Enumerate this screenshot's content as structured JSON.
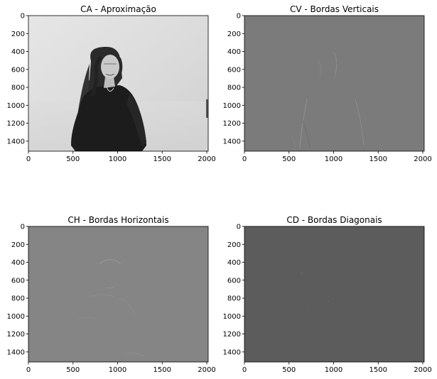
{
  "chart_data": [
    {
      "type": "image",
      "title": "CA - Aproximação",
      "xlim": [
        0,
        2016
      ],
      "ylim": [
        1512,
        0
      ],
      "xticks": [
        0,
        500,
        1000,
        1500,
        2000
      ],
      "yticks": [
        0,
        200,
        400,
        600,
        800,
        1000,
        1200,
        1400
      ],
      "colormap": "gray",
      "content": "grayscale photo of a smiling woman with long curly hair wearing a black top against a light background"
    },
    {
      "type": "image",
      "title": "CV - Bordas Verticais",
      "xlim": [
        0,
        2016
      ],
      "ylim": [
        1512,
        0
      ],
      "xticks": [
        0,
        500,
        1000,
        1500,
        2000
      ],
      "yticks": [
        0,
        200,
        400,
        600,
        800,
        1000,
        1200,
        1400
      ],
      "colormap": "gray",
      "content": "faint vertical edge details on uniform gray"
    },
    {
      "type": "image",
      "title": "CH - Bordas Horizontais",
      "xlim": [
        0,
        2016
      ],
      "ylim": [
        1512,
        0
      ],
      "xticks": [
        0,
        500,
        1000,
        1500,
        2000
      ],
      "yticks": [
        0,
        200,
        400,
        600,
        800,
        1000,
        1200,
        1400
      ],
      "colormap": "gray",
      "content": "faint horizontal edge details on uniform gray"
    },
    {
      "type": "image",
      "title": "CD - Bordas Diagonais",
      "xlim": [
        0,
        2016
      ],
      "ylim": [
        1512,
        0
      ],
      "xticks": [
        0,
        500,
        1000,
        1500,
        2000
      ],
      "yticks": [
        0,
        200,
        400,
        600,
        800,
        1000,
        1200,
        1400
      ],
      "colormap": "gray",
      "content": "nearly uniform dark gray with very faint diagonal details"
    }
  ],
  "colors": {
    "ca_background": "#dcdcdc",
    "cv_background": "#7b7b7b",
    "ch_background": "#858585",
    "cd_background": "#5c5c5c",
    "edge_light": "#959595",
    "edge_dark": "#6a6a6a"
  }
}
